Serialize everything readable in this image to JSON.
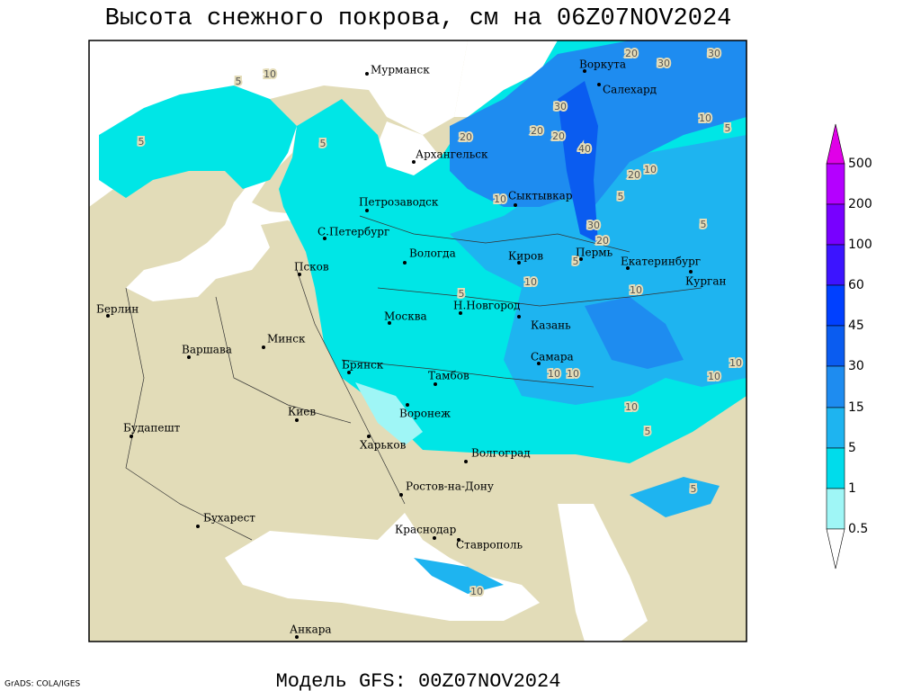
{
  "header": {
    "title": "Высота снежного покрова, см на 06Z07NOV2024"
  },
  "map": {
    "cities": [
      "Мурманск",
      "Воркута",
      "Салехард",
      "Архангельск",
      "Сыктывкар",
      "Петрозаводск",
      "С.Петербург",
      "Вологда",
      "Киров",
      "Пермь",
      "Екатеринбург",
      "Курган",
      "Псков",
      "Н.Новгород",
      "Москва",
      "Казань",
      "Берлин",
      "Минск",
      "Варшава",
      "Самара",
      "Брянск",
      "Тамбов",
      "Киев",
      "Воронеж",
      "Будапешт",
      "Харьков",
      "Волгоград",
      "Ростов-на-Дону",
      "Бухарест",
      "Краснодар",
      "Ставрополь",
      "Анкара"
    ],
    "contour_labels": [
      "20",
      "30",
      "30",
      "10",
      "5",
      "5",
      "5",
      "30",
      "20",
      "20",
      "20",
      "40",
      "10",
      "10",
      "5",
      "20",
      "10",
      "5",
      "30",
      "20",
      "5",
      "10",
      "5",
      "10",
      "10",
      "10",
      "10",
      "10",
      "5",
      "10",
      "5",
      "10",
      "5"
    ]
  },
  "legend": {
    "labels": [
      "500",
      "200",
      "100",
      "60",
      "45",
      "30",
      "15",
      "5",
      "1",
      "0.5"
    ]
  },
  "footer": {
    "model": "Модель GFS: 00Z07NOV2024",
    "credit": "GrADS: COLA/IGES"
  }
}
